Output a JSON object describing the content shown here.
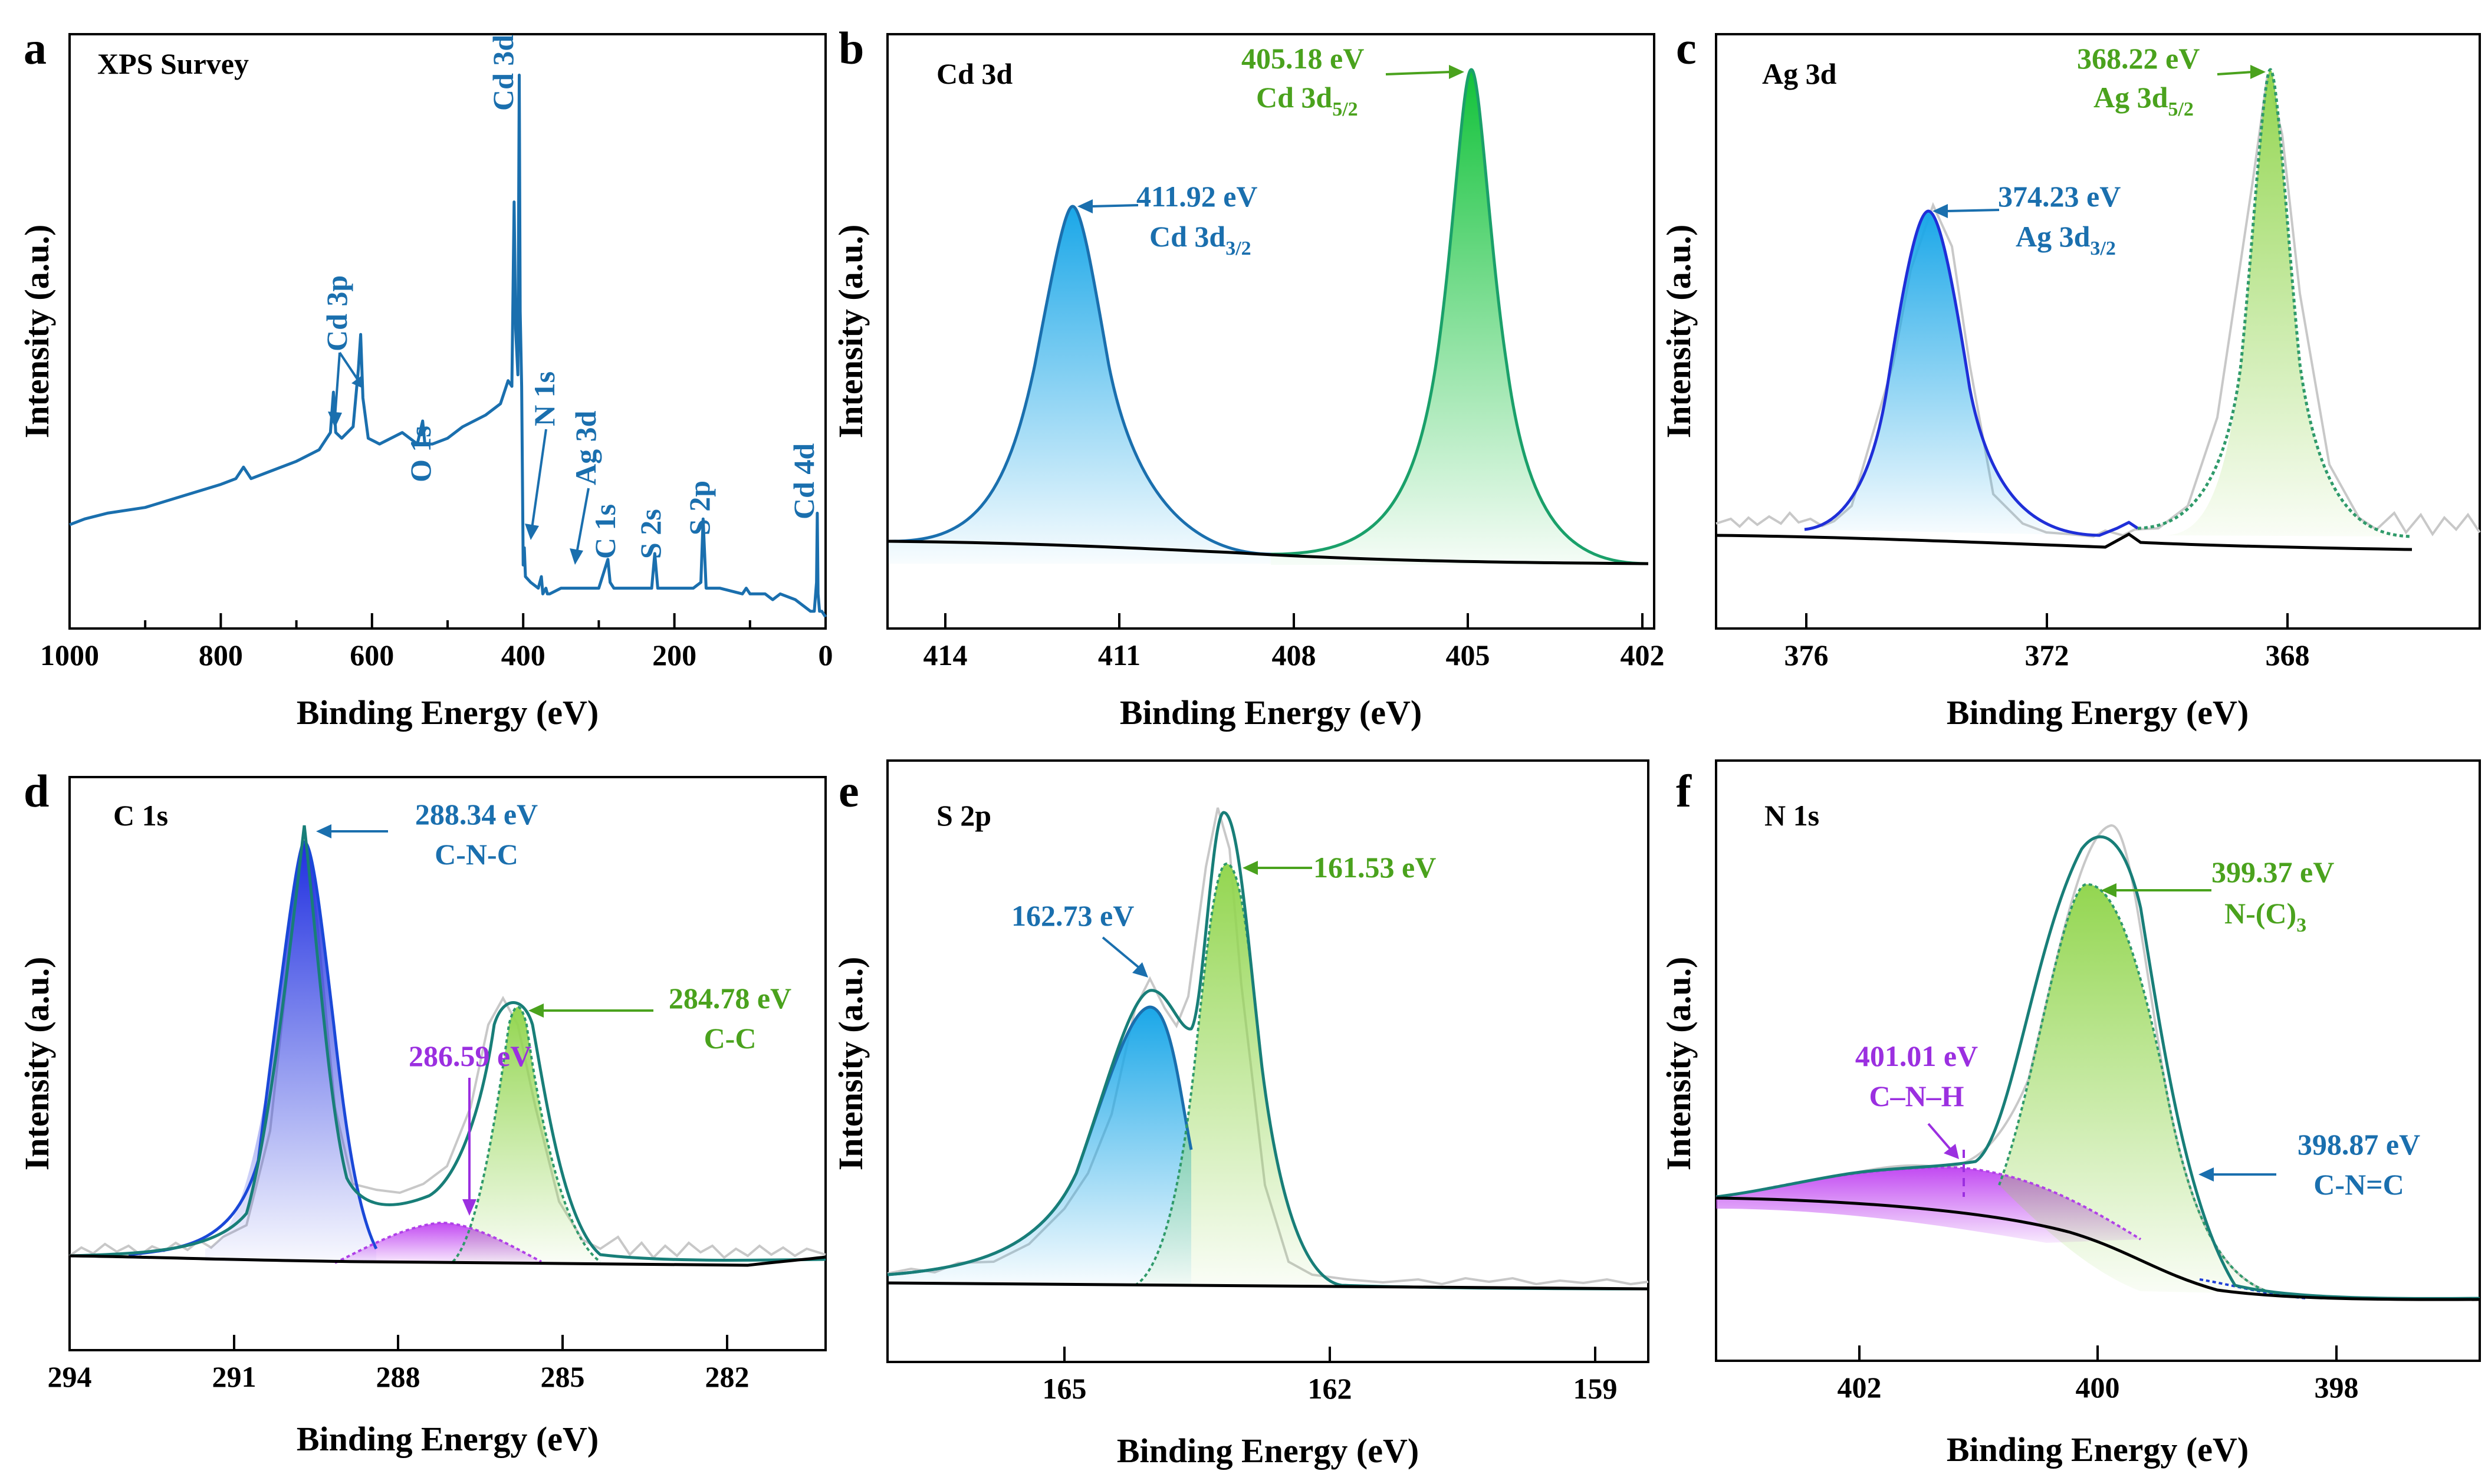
{
  "colors": {
    "blue": "#1a6fae",
    "green": "#4aa21d",
    "purple": "#9b2fe0",
    "teal": "#187e78",
    "black": "#000000",
    "raw": "#c8c8c8"
  },
  "chart_data": [
    {
      "panel": "a",
      "type": "line",
      "title": "XPS Survey",
      "xlabel": "Binding Energy (eV)",
      "ylabel": "Intensity (a.u.)",
      "xlim": [
        1000,
        0
      ],
      "xticks": [
        1000,
        800,
        600,
        400,
        200,
        0
      ],
      "ylim": [
        0,
        1
      ],
      "series": [
        {
          "x": [
            1000,
            980,
            950,
            900,
            850,
            800,
            780,
            770,
            760,
            740,
            700,
            670,
            655,
            651,
            648,
            640,
            625,
            618,
            615,
            612,
            605,
            590,
            560,
            540,
            533,
            530,
            520,
            500,
            480,
            450,
            430,
            420,
            415,
            412,
            410,
            407,
            405.2,
            404,
            402,
            400,
            398.5,
            397,
            390,
            380,
            376,
            374,
            370,
            368,
            365,
            350,
            300,
            288,
            285,
            280,
            250,
            230,
            226,
            222,
            200,
            175,
            165,
            162,
            158,
            140,
            110,
            105,
            100,
            80,
            70,
            60,
            40,
            20,
            15,
            12,
            11,
            10,
            8,
            5,
            0
          ],
          "y": [
            0.18,
            0.19,
            0.2,
            0.21,
            0.23,
            0.25,
            0.26,
            0.28,
            0.26,
            0.27,
            0.29,
            0.31,
            0.34,
            0.41,
            0.34,
            0.33,
            0.35,
            0.45,
            0.51,
            0.4,
            0.33,
            0.32,
            0.34,
            0.32,
            0.36,
            0.32,
            0.32,
            0.33,
            0.35,
            0.37,
            0.39,
            0.43,
            0.42,
            0.74,
            0.52,
            0.44,
            0.96,
            0.55,
            0.42,
            0.11,
            0.14,
            0.09,
            0.08,
            0.07,
            0.09,
            0.06,
            0.07,
            0.06,
            0.06,
            0.07,
            0.07,
            0.12,
            0.08,
            0.07,
            0.07,
            0.07,
            0.13,
            0.07,
            0.07,
            0.07,
            0.08,
            0.19,
            0.07,
            0.07,
            0.06,
            0.07,
            0.06,
            0.06,
            0.05,
            0.06,
            0.05,
            0.03,
            0.03,
            0.08,
            0.2,
            0.06,
            0.03,
            0.03,
            0.02
          ]
        }
      ],
      "annotations": [
        "Cd 3d",
        "Cd 3p",
        "O 1s",
        "N 1s",
        "Ag 3d",
        "C 1s",
        "S 2s",
        "S 2p",
        "Cd 4d"
      ]
    },
    {
      "panel": "b",
      "type": "area",
      "title": "Cd 3d",
      "xlabel": "Binding Energy (eV)",
      "ylabel": "Intensity (a.u.)",
      "xlim": [
        415,
        401.8
      ],
      "xticks": [
        414,
        411,
        408,
        405,
        402
      ],
      "peaks": [
        {
          "label": "411.92 eV",
          "sublabel": "Cd 3d",
          "sub": "3/2",
          "center": 411.92,
          "height": 0.79
        },
        {
          "label": "405.18 eV",
          "sublabel": "Cd 3d",
          "sub": "5/2",
          "center": 405.18,
          "height": 1.0
        }
      ]
    },
    {
      "panel": "c",
      "type": "area",
      "title": "Ag 3d",
      "xlabel": "Binding Energy (eV)",
      "ylabel": "Intensity (a.u.)",
      "xlim": [
        377.5,
        364.8
      ],
      "xticks": [
        376,
        372,
        368
      ],
      "peaks": [
        {
          "label": "374.23 eV",
          "sublabel": "Ag 3d",
          "sub": "3/2",
          "center": 374.23,
          "height": 0.72
        },
        {
          "label": "368.22 eV",
          "sublabel": "Ag 3d",
          "sub": "5/2",
          "center": 368.22,
          "height": 1.0
        }
      ]
    },
    {
      "panel": "d",
      "type": "area",
      "title": "C 1s",
      "xlabel": "Binding Energy (eV)",
      "ylabel": "Intensity (a.u.)",
      "xlim": [
        294,
        280.2
      ],
      "xticks": [
        294,
        291,
        288,
        285,
        282
      ],
      "peaks": [
        {
          "label": "288.34 eV",
          "sublabel": "C-N-C",
          "center": 288.34,
          "height": 0.94
        },
        {
          "label": "286.59 eV",
          "center": 286.59,
          "height": 0.17
        },
        {
          "label": "284.78 eV",
          "sublabel": "C-C",
          "center": 284.78,
          "height": 0.6
        }
      ]
    },
    {
      "panel": "e",
      "type": "area",
      "title": "S 2p",
      "xlabel": "Binding Energy (eV)",
      "ylabel": "Intensity (a.u.)",
      "xlim": [
        167,
        158.4
      ],
      "xticks": [
        165,
        162,
        159
      ],
      "peaks": [
        {
          "label": "162.73 eV",
          "center": 162.73,
          "height": 0.62
        },
        {
          "label": "161.53 eV",
          "center": 161.53,
          "height": 0.98
        }
      ]
    },
    {
      "panel": "f",
      "type": "area",
      "title": "N 1s",
      "xlabel": "Binding Energy (eV)",
      "ylabel": "Intensity (a.u.)",
      "xlim": [
        403.2,
        396.8
      ],
      "xticks": [
        402,
        400,
        398
      ],
      "peaks": [
        {
          "label": "401.01 eV",
          "sublabel": "C–N–H",
          "center": 401.01,
          "height": 0.12
        },
        {
          "label": "399.37 eV",
          "sublabel": "N-(C)",
          "sub": "3",
          "center": 399.37,
          "height": 0.83
        },
        {
          "label": "398.87 eV",
          "sublabel": "C-N=C",
          "center": 398.87,
          "height": 0.1
        }
      ]
    }
  ]
}
